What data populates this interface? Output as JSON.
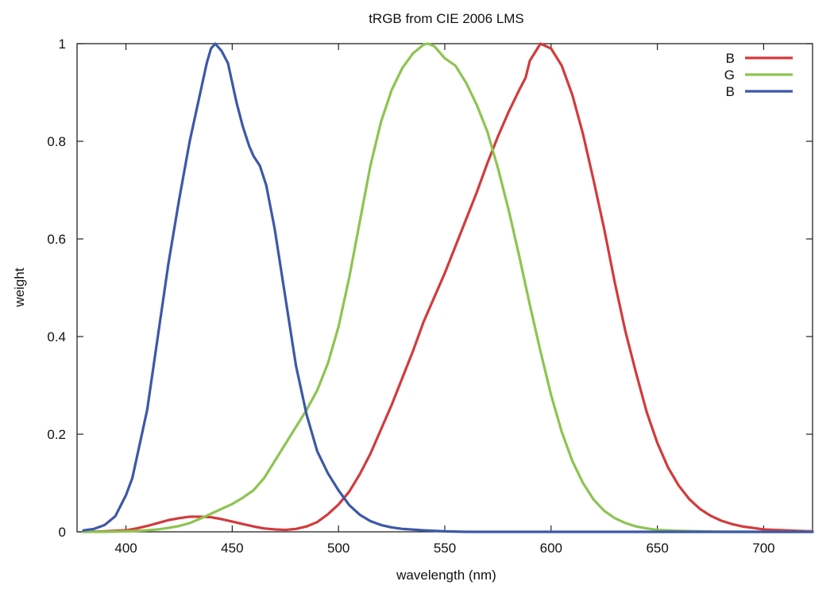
{
  "chart_data": {
    "type": "line",
    "title": "tRGB from CIE 2006 LMS",
    "xlabel": "wavelength (nm)",
    "ylabel": "weight",
    "xlim": [
      377,
      723
    ],
    "ylim": [
      0,
      1
    ],
    "x_ticks": [
      {
        "value": 400,
        "label": "400"
      },
      {
        "value": 450,
        "label": "450"
      },
      {
        "value": 500,
        "label": "500"
      },
      {
        "value": 550,
        "label": "550"
      },
      {
        "value": 600,
        "label": "600"
      },
      {
        "value": 650,
        "label": "650"
      },
      {
        "value": 700,
        "label": "700"
      }
    ],
    "y_ticks": [
      {
        "value": 0,
        "label": "0"
      },
      {
        "value": 0.2,
        "label": "0.2"
      },
      {
        "value": 0.4,
        "label": "0.4"
      },
      {
        "value": 0.6,
        "label": "0.6"
      },
      {
        "value": 0.8,
        "label": "0.8"
      },
      {
        "value": 1,
        "label": "1"
      }
    ],
    "grid": false,
    "legend_position": "top-right",
    "series": [
      {
        "name": "B",
        "color": "#d23b3b",
        "points": [
          [
            380,
            0.0
          ],
          [
            390,
            0.001
          ],
          [
            400,
            0.003
          ],
          [
            405,
            0.007
          ],
          [
            410,
            0.012
          ],
          [
            415,
            0.018
          ],
          [
            420,
            0.024
          ],
          [
            425,
            0.028
          ],
          [
            430,
            0.031
          ],
          [
            435,
            0.031
          ],
          [
            440,
            0.03
          ],
          [
            445,
            0.026
          ],
          [
            450,
            0.021
          ],
          [
            455,
            0.016
          ],
          [
            460,
            0.011
          ],
          [
            465,
            0.007
          ],
          [
            470,
            0.005
          ],
          [
            475,
            0.004
          ],
          [
            480,
            0.006
          ],
          [
            485,
            0.011
          ],
          [
            490,
            0.02
          ],
          [
            495,
            0.036
          ],
          [
            500,
            0.056
          ],
          [
            505,
            0.082
          ],
          [
            510,
            0.118
          ],
          [
            515,
            0.16
          ],
          [
            520,
            0.21
          ],
          [
            525,
            0.26
          ],
          [
            530,
            0.315
          ],
          [
            535,
            0.37
          ],
          [
            540,
            0.43
          ],
          [
            545,
            0.48
          ],
          [
            550,
            0.53
          ],
          [
            555,
            0.585
          ],
          [
            560,
            0.64
          ],
          [
            565,
            0.695
          ],
          [
            570,
            0.755
          ],
          [
            575,
            0.81
          ],
          [
            580,
            0.86
          ],
          [
            585,
            0.905
          ],
          [
            588,
            0.93
          ],
          [
            590,
            0.965
          ],
          [
            595,
            1.0
          ],
          [
            600,
            0.99
          ],
          [
            605,
            0.955
          ],
          [
            610,
            0.895
          ],
          [
            615,
            0.815
          ],
          [
            620,
            0.72
          ],
          [
            625,
            0.62
          ],
          [
            630,
            0.51
          ],
          [
            635,
            0.41
          ],
          [
            640,
            0.325
          ],
          [
            645,
            0.245
          ],
          [
            650,
            0.182
          ],
          [
            655,
            0.132
          ],
          [
            660,
            0.095
          ],
          [
            665,
            0.067
          ],
          [
            670,
            0.047
          ],
          [
            675,
            0.033
          ],
          [
            680,
            0.023
          ],
          [
            685,
            0.016
          ],
          [
            690,
            0.011
          ],
          [
            695,
            0.008
          ],
          [
            700,
            0.005
          ],
          [
            705,
            0.004
          ],
          [
            710,
            0.003
          ],
          [
            715,
            0.002
          ],
          [
            723,
            0.001
          ]
        ]
      },
      {
        "name": "G",
        "color": "#8dc451",
        "points": [
          [
            380,
            0.0
          ],
          [
            390,
            0.0
          ],
          [
            400,
            0.001
          ],
          [
            405,
            0.002
          ],
          [
            410,
            0.003
          ],
          [
            415,
            0.005
          ],
          [
            420,
            0.008
          ],
          [
            425,
            0.012
          ],
          [
            430,
            0.018
          ],
          [
            435,
            0.027
          ],
          [
            440,
            0.037
          ],
          [
            445,
            0.047
          ],
          [
            450,
            0.057
          ],
          [
            455,
            0.07
          ],
          [
            460,
            0.085
          ],
          [
            465,
            0.11
          ],
          [
            470,
            0.145
          ],
          [
            475,
            0.18
          ],
          [
            480,
            0.215
          ],
          [
            485,
            0.25
          ],
          [
            490,
            0.29
          ],
          [
            495,
            0.345
          ],
          [
            500,
            0.42
          ],
          [
            505,
            0.52
          ],
          [
            510,
            0.635
          ],
          [
            515,
            0.75
          ],
          [
            520,
            0.84
          ],
          [
            525,
            0.905
          ],
          [
            530,
            0.95
          ],
          [
            535,
            0.98
          ],
          [
            540,
            0.998
          ],
          [
            542,
            1.0
          ],
          [
            545,
            0.995
          ],
          [
            550,
            0.97
          ],
          [
            555,
            0.955
          ],
          [
            560,
            0.92
          ],
          [
            565,
            0.875
          ],
          [
            570,
            0.82
          ],
          [
            575,
            0.745
          ],
          [
            580,
            0.66
          ],
          [
            585,
            0.565
          ],
          [
            590,
            0.465
          ],
          [
            595,
            0.37
          ],
          [
            600,
            0.28
          ],
          [
            605,
            0.205
          ],
          [
            610,
            0.145
          ],
          [
            615,
            0.1
          ],
          [
            620,
            0.066
          ],
          [
            625,
            0.043
          ],
          [
            630,
            0.028
          ],
          [
            635,
            0.018
          ],
          [
            640,
            0.011
          ],
          [
            645,
            0.007
          ],
          [
            650,
            0.004
          ],
          [
            660,
            0.002
          ],
          [
            670,
            0.001
          ],
          [
            680,
            0.0
          ],
          [
            700,
            0.0
          ],
          [
            723,
            0.0
          ]
        ]
      },
      {
        "name": "B",
        "color": "#3d58a7",
        "points": [
          [
            380,
            0.003
          ],
          [
            385,
            0.006
          ],
          [
            390,
            0.014
          ],
          [
            395,
            0.032
          ],
          [
            400,
            0.075
          ],
          [
            403,
            0.11
          ],
          [
            405,
            0.15
          ],
          [
            410,
            0.25
          ],
          [
            415,
            0.4
          ],
          [
            420,
            0.55
          ],
          [
            425,
            0.68
          ],
          [
            430,
            0.8
          ],
          [
            435,
            0.9
          ],
          [
            438,
            0.96
          ],
          [
            440,
            0.99
          ],
          [
            442,
            1.0
          ],
          [
            445,
            0.985
          ],
          [
            448,
            0.96
          ],
          [
            452,
            0.88
          ],
          [
            455,
            0.83
          ],
          [
            458,
            0.79
          ],
          [
            460,
            0.77
          ],
          [
            463,
            0.75
          ],
          [
            466,
            0.71
          ],
          [
            470,
            0.62
          ],
          [
            475,
            0.48
          ],
          [
            480,
            0.34
          ],
          [
            485,
            0.24
          ],
          [
            490,
            0.165
          ],
          [
            495,
            0.12
          ],
          [
            500,
            0.085
          ],
          [
            505,
            0.055
          ],
          [
            510,
            0.035
          ],
          [
            515,
            0.022
          ],
          [
            520,
            0.014
          ],
          [
            525,
            0.009
          ],
          [
            530,
            0.006
          ],
          [
            540,
            0.003
          ],
          [
            550,
            0.001
          ],
          [
            560,
            0.0
          ],
          [
            600,
            0.0
          ],
          [
            650,
            0.0
          ],
          [
            700,
            0.0
          ],
          [
            723,
            0.0
          ]
        ]
      }
    ]
  }
}
